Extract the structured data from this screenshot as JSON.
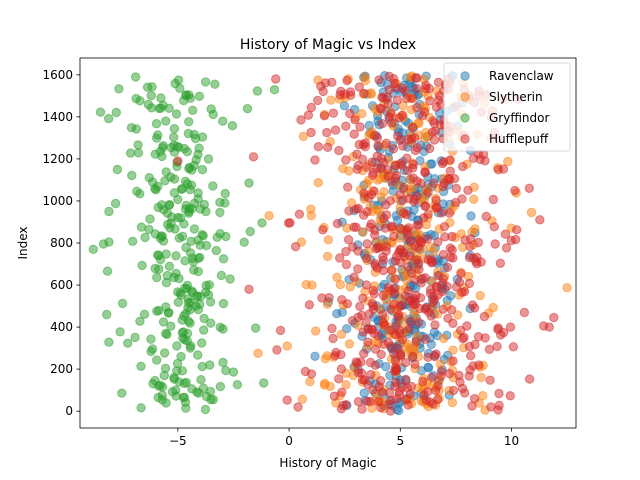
{
  "chart_data": {
    "type": "scatter",
    "title": "History of Magic vs Index",
    "xlabel": "History of Magic",
    "ylabel": "Index",
    "xlim": [
      -9.4,
      12.9
    ],
    "ylim": [
      -80,
      1680
    ],
    "xticks": [
      -5,
      0,
      5,
      10
    ],
    "yticks": [
      0,
      200,
      400,
      600,
      800,
      1000,
      1200,
      1400,
      1600
    ],
    "xtick_labels": [
      "−5",
      "0",
      "5",
      "10"
    ],
    "ytick_labels": [
      "0",
      "200",
      "400",
      "600",
      "800",
      "1000",
      "1200",
      "1400",
      "1600"
    ],
    "grid": false,
    "legend_position": "top-right",
    "series": [
      {
        "name": "Ravenclaw",
        "color": "#1f77b4",
        "center": 5.2,
        "spread": 1.25,
        "count": 300,
        "points": [
          [
            3.8,
            980
          ],
          [
            4.2,
            700
          ],
          [
            5.1,
            640
          ],
          [
            4.6,
            300
          ],
          [
            5.6,
            1350
          ],
          [
            3.9,
            130
          ]
        ]
      },
      {
        "name": "Slytherin",
        "color": "#ff7f0e",
        "center": 5.2,
        "spread": 2.1,
        "count": 300,
        "points": [
          [
            -0.9,
            930
          ],
          [
            1.0,
            930
          ],
          [
            1.3,
            1575
          ],
          [
            10.9,
            945
          ],
          [
            3.4,
            1590
          ],
          [
            2.1,
            40
          ]
        ]
      },
      {
        "name": "Gryffindor",
        "color": "#2ca02c",
        "center": -5.0,
        "spread": 1.3,
        "count": 300,
        "points": [
          [
            -8.8,
            770
          ],
          [
            -8.2,
            460
          ],
          [
            -8.1,
            950
          ],
          [
            -1.8,
            1085
          ],
          [
            -1.5,
            395
          ],
          [
            -6.9,
            1590
          ]
        ]
      },
      {
        "name": "Hufflepuff",
        "color": "#d62728",
        "center": 5.3,
        "spread": 2.2,
        "count": 530,
        "points": [
          [
            -0.6,
            1580
          ],
          [
            -1.6,
            1210
          ],
          [
            -1.8,
            580
          ],
          [
            11.9,
            445
          ],
          [
            11.7,
            400
          ],
          [
            10.8,
            1060
          ],
          [
            0.4,
            20
          ],
          [
            -5.0,
            1190
          ]
        ]
      }
    ]
  }
}
